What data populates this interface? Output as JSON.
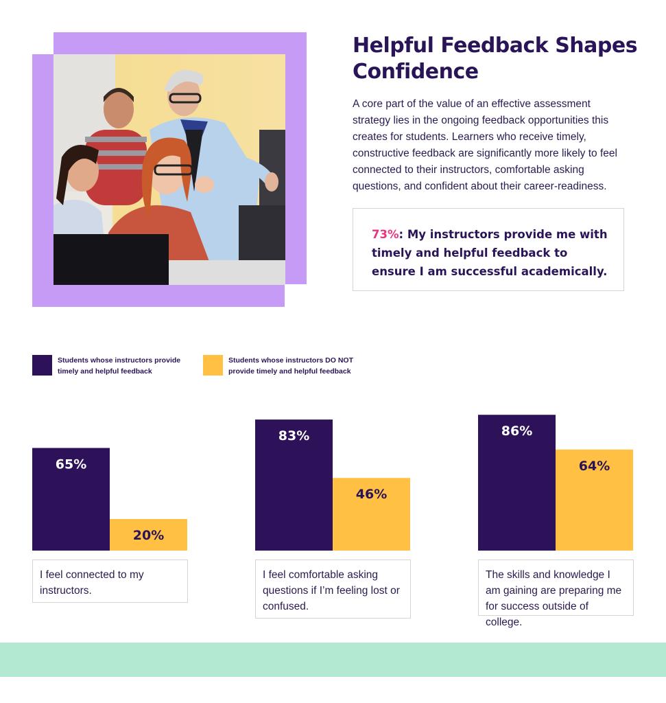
{
  "headline": "Helpful Feedback Shapes Confidence",
  "body": "A core part of the value of an effective assessment strategy lies in the ongoing feedback opportunities this creates for students. Learners who receive timely, constructive feedback are significantly more likely to feel connected to their instructors, comfortable asking questions, and confident about their career-readiness.",
  "quote": {
    "percent": "73%",
    "text": ": My instructors provide me with timely and helpful feedback to ensure I am successful academically."
  },
  "colors": {
    "with_feedback": "#2d1259",
    "without_feedback": "#ffc043",
    "accent_pink": "#e6347f",
    "photo_frame": "#c59bf6",
    "footer_band": "#b3e8d2"
  },
  "legend": [
    {
      "label": "Students whose instructors provide\ntimely and helpful feedback",
      "color": "#2d1259"
    },
    {
      "label": "Students whose instructors DO NOT\nprovide timely and helpful feedback",
      "color": "#ffc043"
    }
  ],
  "photo": {
    "description_icon": "classroom-photo"
  },
  "chart_data": [
    {
      "type": "bar",
      "categories": [
        "Students whose instructors provide timely and helpful feedback",
        "Students whose instructors DO NOT provide timely and helpful feedback"
      ],
      "values": [
        65,
        20
      ],
      "value_labels": [
        "65%",
        "20%"
      ],
      "caption": "I feel connected to my instructors.",
      "ylim": [
        0,
        100
      ]
    },
    {
      "type": "bar",
      "categories": [
        "Students whose instructors provide timely and helpful feedback",
        "Students whose instructors DO NOT provide timely and helpful feedback"
      ],
      "values": [
        83,
        46
      ],
      "value_labels": [
        "83%",
        "46%"
      ],
      "caption": "I feel comfortable asking questions if I’m feeling lost or confused.",
      "ylim": [
        0,
        100
      ]
    },
    {
      "type": "bar",
      "categories": [
        "Students whose instructors provide timely and helpful feedback",
        "Students whose instructors DO NOT provide timely and helpful feedback"
      ],
      "values": [
        86,
        64
      ],
      "value_labels": [
        "86%",
        "64%"
      ],
      "caption": "The skills and knowledge I am gaining are preparing me for success outside of college.",
      "ylim": [
        0,
        100
      ]
    }
  ]
}
